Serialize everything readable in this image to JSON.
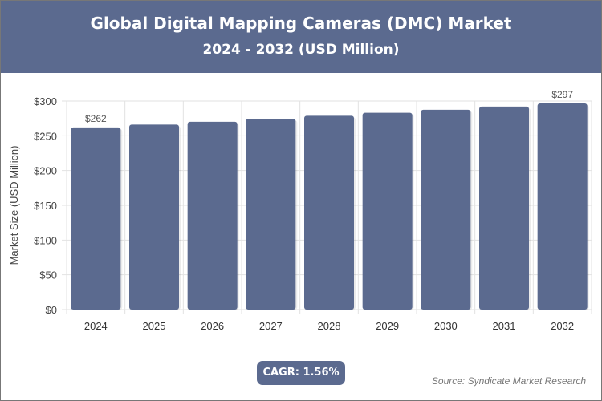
{
  "header": {
    "title": "Global Digital Mapping Cameras (DMC) Market",
    "subtitle": "2024 - 2032 (USD Million)"
  },
  "chart_data": {
    "type": "bar",
    "categories": [
      "2024",
      "2025",
      "2026",
      "2027",
      "2028",
      "2029",
      "2030",
      "2031",
      "2032"
    ],
    "values": [
      262,
      266.1,
      270.2,
      274.5,
      278.8,
      283.1,
      287.5,
      292.0,
      296.6
    ],
    "data_labels": {
      "0": "$262",
      "8": "$297"
    },
    "ylabel": "Market Size (USD Million)",
    "xlabel": "",
    "ylim": [
      0,
      300
    ],
    "yticks": [
      0,
      50,
      100,
      150,
      200,
      250,
      300
    ],
    "ytick_labels": [
      "$0",
      "$50",
      "$100",
      "$150",
      "$200",
      "$250",
      "$300"
    ],
    "grid": true,
    "bar_color": "#5b6a8f"
  },
  "footer": {
    "cagr": "CAGR: 1.56%",
    "source": "Source: Syndicate Market Research"
  }
}
